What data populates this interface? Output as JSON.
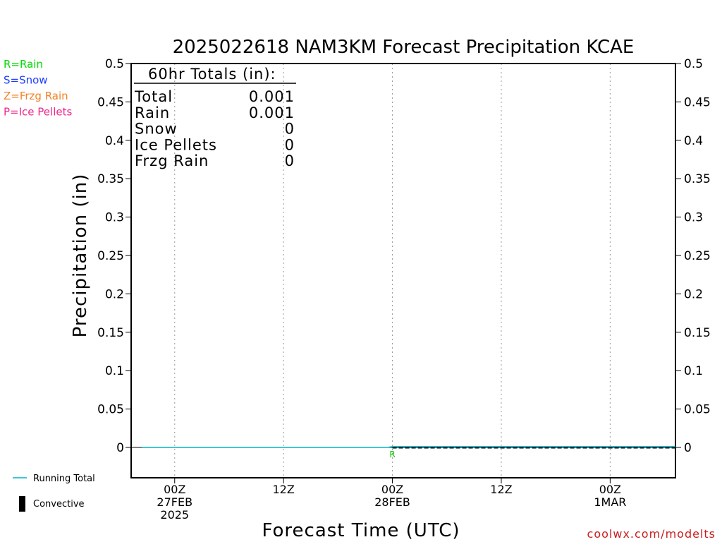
{
  "chart_data": {
    "type": "line",
    "title": "2025022618 NAM3KM Forecast Precipitation KCAE",
    "xlabel": "Forecast Time (UTC)",
    "ylabel": "Precipitation (in)",
    "ylim": [
      0,
      0.5
    ],
    "y_ticks": [
      0,
      0.05,
      0.1,
      0.15,
      0.2,
      0.25,
      0.3,
      0.35,
      0.4,
      0.45,
      0.5
    ],
    "y_tick_labels": [
      "0",
      "0.05",
      "0.1",
      "0.15",
      "0.2",
      "0.25",
      "0.3",
      "0.35",
      "0.4",
      "0.45",
      "0.5"
    ],
    "xlim_hours": [
      -4,
      46
    ],
    "x_ticks": [
      {
        "hour": 0,
        "lines": [
          "00Z",
          "27FEB",
          "2025"
        ]
      },
      {
        "hour": 10,
        "lines": [
          "12Z"
        ]
      },
      {
        "hour": 20,
        "lines": [
          "00Z",
          "28FEB"
        ]
      },
      {
        "hour": 30,
        "lines": [
          "12Z"
        ]
      },
      {
        "hour": 40,
        "lines": [
          "00Z",
          "1MAR"
        ]
      }
    ],
    "grid": "vertical-dotted",
    "series": [
      {
        "name": "Running Total",
        "color": "#00b4c8",
        "x_hours": [
          -4,
          0,
          10,
          19.5,
          20,
          30,
          40,
          46
        ],
        "values": [
          0,
          0,
          0,
          0,
          0.001,
          0.001,
          0.001,
          0.001
        ]
      }
    ],
    "precip_type_markers": [
      {
        "hour": 20,
        "label": "R",
        "color": "#00c800"
      }
    ],
    "precip_type_legend": [
      {
        "label": "R=Rain",
        "color": "#00dc00"
      },
      {
        "label": "S=Snow",
        "color": "#1e3cff"
      },
      {
        "label": "Z=Frzg Rain",
        "color": "#f08228"
      },
      {
        "label": "P=Ice Pellets",
        "color": "#f0288c"
      }
    ],
    "legend": [
      {
        "label": "Running Total",
        "type": "line",
        "color": "#00b4c8"
      },
      {
        "label": "Convective",
        "type": "bar",
        "color": "#000000"
      }
    ],
    "totals_box": {
      "header": "60hr Totals (in):",
      "rows": [
        {
          "label": "Total",
          "value": "0.001"
        },
        {
          "label": "Rain",
          "value": "0.001"
        },
        {
          "label": "Snow",
          "value": "0"
        },
        {
          "label": "Ice Pellets",
          "value": "0"
        },
        {
          "label": "Frzg Rain",
          "value": "0"
        }
      ]
    },
    "credit": "coolwx.com/modelts",
    "credit_color": "#c81e1e"
  }
}
